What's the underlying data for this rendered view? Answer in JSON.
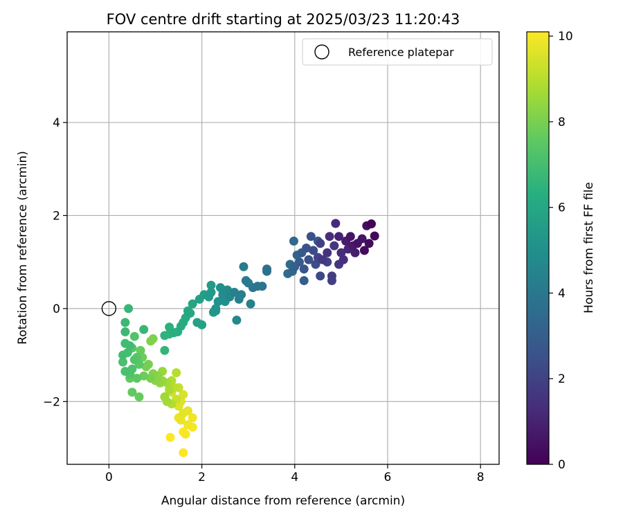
{
  "chart_data": {
    "type": "scatter",
    "title": "FOV centre drift starting at 2025/03/23 11:20:43",
    "xlabel": "Angular distance from reference (arcmin)",
    "ylabel": "Rotation from reference (arcmin)",
    "xlim": [
      -0.9,
      8.4
    ],
    "ylim": [
      -3.35,
      5.95
    ],
    "xticks": [
      0,
      2,
      4,
      6,
      8
    ],
    "yticks": [
      -2,
      0,
      2,
      4
    ],
    "xtick_labels": [
      "0",
      "2",
      "4",
      "6",
      "8"
    ],
    "ytick_labels": [
      "−2",
      "0",
      "2",
      "4"
    ],
    "grid": true,
    "colormap": "viridis",
    "colorbar": {
      "label": "Hours from first FF file",
      "range": [
        0,
        10.1
      ],
      "ticks": [
        0,
        2,
        4,
        6,
        8,
        10
      ],
      "tick_labels": [
        "0",
        "2",
        "4",
        "6",
        "8",
        "10"
      ]
    },
    "legend": {
      "placement": "top-right",
      "entries": [
        {
          "label": "Reference platepar",
          "marker": "open-circle"
        }
      ]
    },
    "reference_point": {
      "x": 0,
      "y": 0
    },
    "points": [
      {
        "x": 5.65,
        "y": 1.82,
        "h": 0.1
      },
      {
        "x": 5.72,
        "y": 1.56,
        "h": 0.2
      },
      {
        "x": 5.6,
        "y": 1.4,
        "h": 0.3
      },
      {
        "x": 5.5,
        "y": 1.25,
        "h": 0.3
      },
      {
        "x": 5.55,
        "y": 1.78,
        "h": 0.4
      },
      {
        "x": 5.35,
        "y": 1.4,
        "h": 0.5
      },
      {
        "x": 5.2,
        "y": 1.55,
        "h": 0.6
      },
      {
        "x": 5.45,
        "y": 1.5,
        "h": 0.6
      },
      {
        "x": 5.25,
        "y": 1.35,
        "h": 0.7
      },
      {
        "x": 5.1,
        "y": 1.45,
        "h": 0.8
      },
      {
        "x": 5.3,
        "y": 1.2,
        "h": 0.9
      },
      {
        "x": 4.95,
        "y": 1.55,
        "h": 1.0
      },
      {
        "x": 5.15,
        "y": 1.28,
        "h": 1.1
      },
      {
        "x": 4.88,
        "y": 1.83,
        "h": 1.2
      },
      {
        "x": 5.0,
        "y": 1.2,
        "h": 1.3
      },
      {
        "x": 4.75,
        "y": 1.55,
        "h": 1.3
      },
      {
        "x": 5.05,
        "y": 1.05,
        "h": 1.4
      },
      {
        "x": 4.7,
        "y": 1.2,
        "h": 1.5
      },
      {
        "x": 4.85,
        "y": 1.35,
        "h": 1.6
      },
      {
        "x": 4.95,
        "y": 0.95,
        "h": 1.6
      },
      {
        "x": 4.6,
        "y": 1.05,
        "h": 1.7
      },
      {
        "x": 4.8,
        "y": 0.7,
        "h": 1.8
      },
      {
        "x": 4.8,
        "y": 0.6,
        "h": 1.9
      },
      {
        "x": 4.55,
        "y": 1.4,
        "h": 1.9
      },
      {
        "x": 4.7,
        "y": 1.0,
        "h": 2.0
      },
      {
        "x": 4.5,
        "y": 1.1,
        "h": 2.1
      },
      {
        "x": 4.55,
        "y": 0.7,
        "h": 2.2
      },
      {
        "x": 4.4,
        "y": 1.25,
        "h": 2.3
      },
      {
        "x": 4.45,
        "y": 0.95,
        "h": 2.4
      },
      {
        "x": 4.35,
        "y": 1.55,
        "h": 2.5
      },
      {
        "x": 4.3,
        "y": 1.05,
        "h": 2.5
      },
      {
        "x": 4.25,
        "y": 1.3,
        "h": 2.6
      },
      {
        "x": 4.2,
        "y": 0.85,
        "h": 2.7
      },
      {
        "x": 4.15,
        "y": 1.2,
        "h": 2.8
      },
      {
        "x": 4.5,
        "y": 1.45,
        "h": 2.8
      },
      {
        "x": 4.1,
        "y": 1.0,
        "h": 2.9
      },
      {
        "x": 4.2,
        "y": 0.6,
        "h": 3.0
      },
      {
        "x": 4.0,
        "y": 0.9,
        "h": 3.1
      },
      {
        "x": 4.05,
        "y": 1.15,
        "h": 3.2
      },
      {
        "x": 3.95,
        "y": 0.8,
        "h": 3.3
      },
      {
        "x": 3.98,
        "y": 1.45,
        "h": 3.4
      },
      {
        "x": 3.9,
        "y": 0.95,
        "h": 3.5
      },
      {
        "x": 3.85,
        "y": 0.75,
        "h": 3.6
      },
      {
        "x": 3.4,
        "y": 0.8,
        "h": 3.7
      },
      {
        "x": 3.4,
        "y": 0.85,
        "h": 3.8
      },
      {
        "x": 3.3,
        "y": 0.48,
        "h": 3.9
      },
      {
        "x": 3.2,
        "y": 0.48,
        "h": 4.0
      },
      {
        "x": 3.1,
        "y": 0.45,
        "h": 4.0
      },
      {
        "x": 2.95,
        "y": 0.6,
        "h": 4.1
      },
      {
        "x": 3.0,
        "y": 0.55,
        "h": 4.2
      },
      {
        "x": 2.9,
        "y": 0.9,
        "h": 4.2
      },
      {
        "x": 2.85,
        "y": 0.3,
        "h": 4.3
      },
      {
        "x": 2.8,
        "y": 0.2,
        "h": 4.4
      },
      {
        "x": 3.05,
        "y": 0.1,
        "h": 4.4
      },
      {
        "x": 2.7,
        "y": 0.35,
        "h": 4.5
      },
      {
        "x": 2.6,
        "y": 0.25,
        "h": 4.6
      },
      {
        "x": 2.75,
        "y": -0.25,
        "h": 4.7
      },
      {
        "x": 2.55,
        "y": 0.4,
        "h": 4.8
      },
      {
        "x": 2.45,
        "y": 0.3,
        "h": 4.9
      },
      {
        "x": 2.5,
        "y": 0.15,
        "h": 5.0
      },
      {
        "x": 2.4,
        "y": 0.45,
        "h": 5.0
      },
      {
        "x": 2.35,
        "y": 0.15,
        "h": 5.1
      },
      {
        "x": 2.3,
        "y": 0.0,
        "h": 5.2
      },
      {
        "x": 2.3,
        "y": -0.05,
        "h": 5.3
      },
      {
        "x": 2.25,
        "y": -0.08,
        "h": 5.3
      },
      {
        "x": 2.2,
        "y": 0.35,
        "h": 5.4
      },
      {
        "x": 2.2,
        "y": 0.5,
        "h": 5.5
      },
      {
        "x": 2.15,
        "y": 0.25,
        "h": 5.5
      },
      {
        "x": 2.05,
        "y": 0.3,
        "h": 5.6
      },
      {
        "x": 1.95,
        "y": 0.2,
        "h": 5.7
      },
      {
        "x": 2.0,
        "y": -0.35,
        "h": 5.7
      },
      {
        "x": 1.9,
        "y": -0.3,
        "h": 5.8
      },
      {
        "x": 1.8,
        "y": 0.1,
        "h": 5.9
      },
      {
        "x": 1.75,
        "y": -0.1,
        "h": 6.0
      },
      {
        "x": 1.7,
        "y": -0.05,
        "h": 6.0
      },
      {
        "x": 1.65,
        "y": -0.2,
        "h": 6.1
      },
      {
        "x": 1.6,
        "y": -0.3,
        "h": 6.2
      },
      {
        "x": 1.55,
        "y": -0.38,
        "h": 6.2
      },
      {
        "x": 1.48,
        "y": -0.5,
        "h": 6.3
      },
      {
        "x": 1.4,
        "y": -0.52,
        "h": 6.3
      },
      {
        "x": 1.3,
        "y": -0.4,
        "h": 6.4
      },
      {
        "x": 1.3,
        "y": -0.55,
        "h": 6.5
      },
      {
        "x": 1.2,
        "y": -0.58,
        "h": 6.5
      },
      {
        "x": 1.2,
        "y": -0.9,
        "h": 6.6
      },
      {
        "x": 0.75,
        "y": -0.45,
        "h": 6.7
      },
      {
        "x": 0.42,
        "y": 0.0,
        "h": 6.7
      },
      {
        "x": 0.35,
        "y": -0.3,
        "h": 6.8
      },
      {
        "x": 0.35,
        "y": -0.5,
        "h": 6.8
      },
      {
        "x": 0.35,
        "y": -0.75,
        "h": 6.9
      },
      {
        "x": 0.45,
        "y": -0.8,
        "h": 6.9
      },
      {
        "x": 0.3,
        "y": -1.0,
        "h": 7.0
      },
      {
        "x": 0.4,
        "y": -0.95,
        "h": 7.0
      },
      {
        "x": 0.3,
        "y": -1.15,
        "h": 7.1
      },
      {
        "x": 0.35,
        "y": -1.35,
        "h": 7.1
      },
      {
        "x": 0.45,
        "y": -1.4,
        "h": 7.2
      },
      {
        "x": 0.5,
        "y": -1.3,
        "h": 7.2
      },
      {
        "x": 0.55,
        "y": -1.1,
        "h": 7.3
      },
      {
        "x": 0.55,
        "y": -0.6,
        "h": 7.3
      },
      {
        "x": 0.5,
        "y": -0.85,
        "h": 7.4
      },
      {
        "x": 0.6,
        "y": -1.05,
        "h": 7.4
      },
      {
        "x": 0.65,
        "y": -1.2,
        "h": 7.5
      },
      {
        "x": 0.6,
        "y": -1.5,
        "h": 7.5
      },
      {
        "x": 0.45,
        "y": -1.5,
        "h": 7.6
      },
      {
        "x": 0.5,
        "y": -1.8,
        "h": 7.6
      },
      {
        "x": 0.65,
        "y": -1.9,
        "h": 7.7
      },
      {
        "x": 0.68,
        "y": -0.9,
        "h": 7.7
      },
      {
        "x": 0.72,
        "y": -1.05,
        "h": 7.8
      },
      {
        "x": 0.75,
        "y": -1.45,
        "h": 7.8
      },
      {
        "x": 0.8,
        "y": -1.25,
        "h": 7.9
      },
      {
        "x": 0.85,
        "y": -1.2,
        "h": 8.0
      },
      {
        "x": 0.9,
        "y": -1.5,
        "h": 8.0
      },
      {
        "x": 0.9,
        "y": -0.7,
        "h": 8.1
      },
      {
        "x": 0.95,
        "y": -0.65,
        "h": 8.1
      },
      {
        "x": 0.95,
        "y": -1.4,
        "h": 8.2
      },
      {
        "x": 1.0,
        "y": -1.55,
        "h": 8.3
      },
      {
        "x": 1.05,
        "y": -1.45,
        "h": 8.3
      },
      {
        "x": 1.1,
        "y": -1.6,
        "h": 8.4
      },
      {
        "x": 1.15,
        "y": -1.35,
        "h": 8.5
      },
      {
        "x": 1.15,
        "y": -1.55,
        "h": 8.5
      },
      {
        "x": 1.2,
        "y": -1.9,
        "h": 8.6
      },
      {
        "x": 1.25,
        "y": -1.6,
        "h": 8.7
      },
      {
        "x": 1.25,
        "y": -2.0,
        "h": 8.7
      },
      {
        "x": 1.3,
        "y": -1.75,
        "h": 8.8
      },
      {
        "x": 1.35,
        "y": -1.55,
        "h": 8.9
      },
      {
        "x": 1.35,
        "y": -2.05,
        "h": 8.9
      },
      {
        "x": 1.45,
        "y": -1.38,
        "h": 9.0
      },
      {
        "x": 1.4,
        "y": -1.7,
        "h": 9.1
      },
      {
        "x": 1.5,
        "y": -1.7,
        "h": 9.2
      },
      {
        "x": 1.45,
        "y": -1.95,
        "h": 9.3
      },
      {
        "x": 1.35,
        "y": -1.8,
        "h": 9.4
      },
      {
        "x": 1.6,
        "y": -1.85,
        "h": 9.5
      },
      {
        "x": 1.5,
        "y": -2.1,
        "h": 9.6
      },
      {
        "x": 1.55,
        "y": -2.0,
        "h": 9.6
      },
      {
        "x": 1.6,
        "y": -2.25,
        "h": 9.7
      },
      {
        "x": 1.7,
        "y": -2.2,
        "h": 9.7
      },
      {
        "x": 1.5,
        "y": -2.35,
        "h": 9.8
      },
      {
        "x": 1.55,
        "y": -2.4,
        "h": 9.8
      },
      {
        "x": 1.8,
        "y": -2.35,
        "h": 9.9
      },
      {
        "x": 1.7,
        "y": -2.5,
        "h": 9.9
      },
      {
        "x": 1.8,
        "y": -2.55,
        "h": 10.0
      },
      {
        "x": 1.65,
        "y": -2.7,
        "h": 10.0
      },
      {
        "x": 1.6,
        "y": -2.65,
        "h": 10.1
      },
      {
        "x": 1.32,
        "y": -2.77,
        "h": 10.1
      },
      {
        "x": 1.6,
        "y": -3.1,
        "h": 10.1
      }
    ]
  }
}
